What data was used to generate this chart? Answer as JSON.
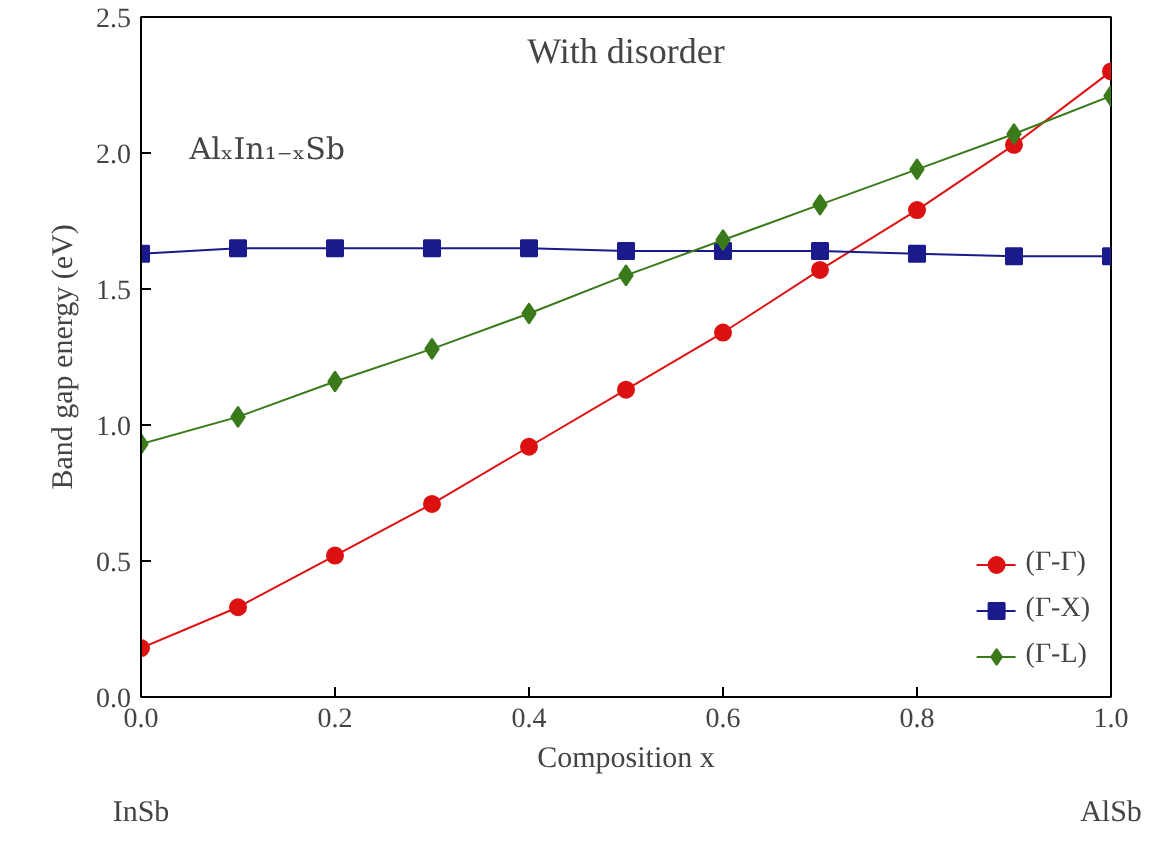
{
  "chart_data": {
    "type": "line",
    "xlabel": "Composition x",
    "ylabel": "Band gap energy (eV)",
    "annotations": [
      "With disorder",
      "AlₓIn₁₋ₓSb",
      "InSb",
      "AlSb"
    ],
    "x": [
      0,
      0.1,
      0.2,
      0.3,
      0.4,
      0.5,
      0.6,
      0.7,
      0.8,
      0.9,
      1.0
    ],
    "series": [
      {
        "name": "(Γ-Γ)",
        "color": "#dd1111",
        "marker": "circle",
        "values": [
          0.18,
          0.33,
          0.52,
          0.71,
          0.92,
          1.13,
          1.34,
          1.57,
          1.79,
          2.03,
          2.3
        ]
      },
      {
        "name": "(Γ-X)",
        "color": "#1a1a8c",
        "marker": "square",
        "values": [
          1.63,
          1.65,
          1.65,
          1.65,
          1.65,
          1.64,
          1.64,
          1.64,
          1.63,
          1.62,
          1.62
        ]
      },
      {
        "name": "(Γ-L)",
        "color": "#3a7a1a",
        "marker": "diamond",
        "values": [
          0.93,
          1.03,
          1.16,
          1.28,
          1.41,
          1.55,
          1.68,
          1.81,
          1.94,
          2.07,
          2.21
        ]
      }
    ],
    "xlim": [
      0,
      1
    ],
    "ylim": [
      0,
      2.5
    ],
    "xticks": [
      {
        "value": 0,
        "label": "0.0"
      },
      0.2,
      0.4,
      0.6,
      0.8,
      {
        "value": 1,
        "label": "1.0"
      }
    ],
    "yticks": [
      {
        "value": 0,
        "label": "0.0"
      },
      0.5,
      {
        "value": 1,
        "label": "1.0"
      },
      1.5,
      {
        "value": 2,
        "label": "2.0"
      },
      2.5
    ],
    "grid": false,
    "legend": "bottom right",
    "line_style": "solid"
  }
}
